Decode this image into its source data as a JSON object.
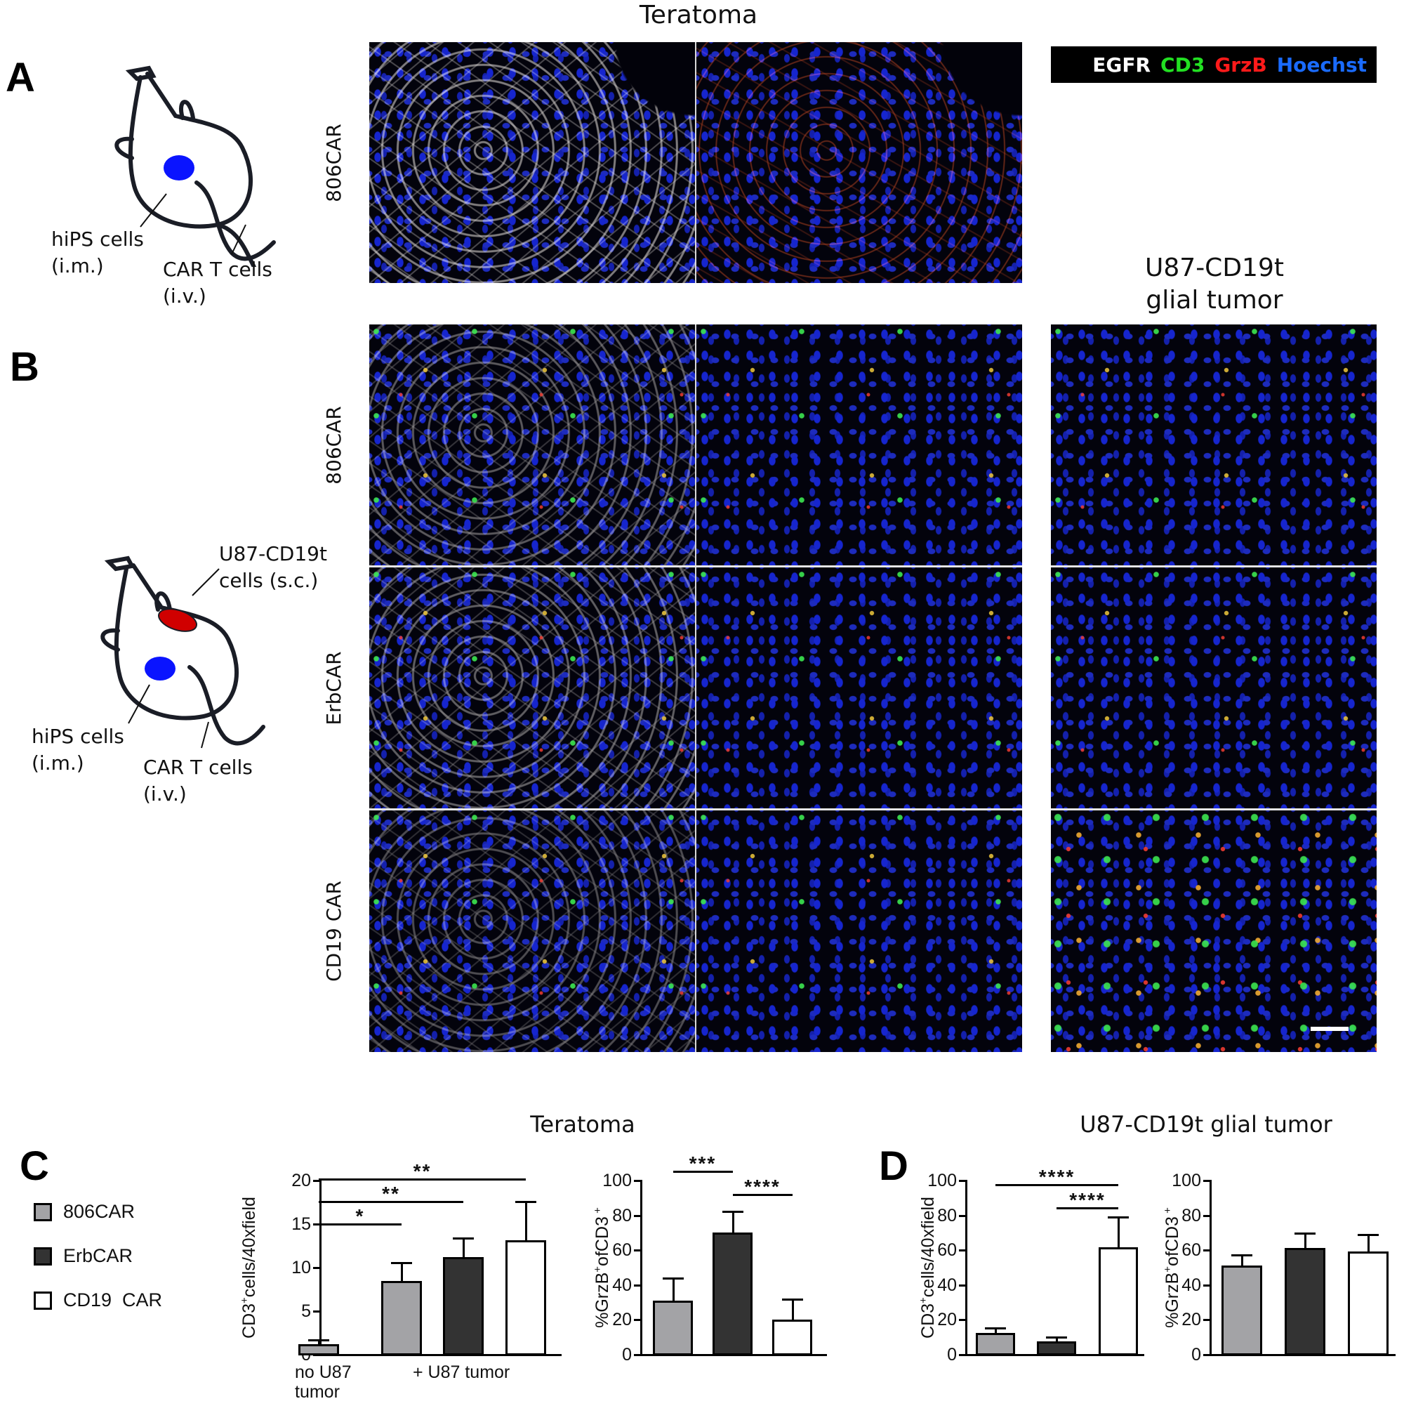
{
  "figure": {
    "panel_letters": [
      "A",
      "B",
      "C",
      "D"
    ],
    "top_title": "Teratoma",
    "right_column_title_line1": "U87-CD19t",
    "right_column_title_line2": "glial tumor",
    "stain_legend": [
      {
        "label": "EGFR",
        "color": "#ffffff"
      },
      {
        "label": "CD3",
        "color": "#22e022"
      },
      {
        "label": "GrzB",
        "color": "#ff1a1a"
      },
      {
        "label": "Hoechst",
        "color": "#1a6bff"
      }
    ],
    "panel_a": {
      "row_label": "806CAR",
      "mouse": {
        "label_hips_line1": "hiPS cells",
        "label_hips_line2": "(i.m.)",
        "label_cart_line1": "CAR T cells",
        "label_cart_line2": "(i.v.)",
        "hips_color": "#0a14ff"
      }
    },
    "panel_b": {
      "row_labels": [
        "806CAR",
        "ErbCAR",
        "CD19 CAR"
      ],
      "mouse": {
        "label_u87_line1": "U87-CD19t",
        "label_u87_line2": "cells (s.c.)",
        "label_hips_line1": "hiPS cells",
        "label_hips_line2": "(i.m.)",
        "label_cart_line1": "CAR T cells",
        "label_cart_line2": "(i.v.)",
        "hips_color": "#0a14ff",
        "u87_color": "#d00000"
      }
    },
    "bottom_titles": {
      "teratoma": "Teratoma",
      "glial": "U87-CD19t glial tumor"
    },
    "bar_legend": [
      {
        "label": "806CAR",
        "color": "#a3a3a6"
      },
      {
        "label": "ErbCAR",
        "color": "#333333"
      },
      {
        "label": "CD19  CAR",
        "color": "#ffffff"
      }
    ]
  },
  "chart_data": [
    {
      "id": "C-left",
      "type": "bar",
      "panel": "C",
      "group_title": "Teratoma",
      "ylabel": "CD3+cells/40xfield",
      "ylabel_main": "CD3",
      "ylabel_sup": "+",
      "ylabel_rest": "cells/40xfield",
      "ylim": [
        0,
        20
      ],
      "yticks": [
        "0",
        "5",
        "10",
        "15",
        "20"
      ],
      "x_group_labels": [
        {
          "line1": "no U87",
          "line2": "tumor"
        },
        {
          "line1": "+ U87 tumor",
          "line2": ""
        }
      ],
      "categories": [
        "806CAR (no U87 tumor)",
        "806CAR (+U87)",
        "ErbCAR (+U87)",
        "CD19 CAR (+U87)"
      ],
      "values": [
        1.1,
        8.4,
        11.1,
        13.1
      ],
      "error_upper": [
        1.7,
        10.6,
        13.4,
        17.6
      ],
      "colors": [
        "#a3a3a6",
        "#a3a3a6",
        "#333333",
        "#ffffff"
      ],
      "significance": [
        {
          "from": 0,
          "to": 3,
          "label": "**"
        },
        {
          "from": 0,
          "to": 2,
          "label": "**"
        },
        {
          "from": 0,
          "to": 1,
          "label": "*"
        }
      ]
    },
    {
      "id": "C-right",
      "type": "bar",
      "panel": "C",
      "group_title": "Teratoma",
      "ylabel": "%GrzB+ofCD3+",
      "ylabel_main": "%GrzB",
      "ylabel_sup": "+",
      "ylabel_rest": "ofCD3",
      "ylabel_sup2": "+",
      "ylim": [
        0,
        100
      ],
      "yticks": [
        "0",
        "20",
        "40",
        "60",
        "80",
        "100"
      ],
      "categories": [
        "806CAR",
        "ErbCAR",
        "CD19 CAR"
      ],
      "values": [
        30.6,
        69.8,
        19.7
      ],
      "error_upper": [
        43.9,
        82.4,
        31.9
      ],
      "colors": [
        "#a3a3a6",
        "#333333",
        "#ffffff"
      ],
      "significance": [
        {
          "from": 0,
          "to": 1,
          "label": "***"
        },
        {
          "from": 1,
          "to": 2,
          "label": "****"
        }
      ]
    },
    {
      "id": "D-left",
      "type": "bar",
      "panel": "D",
      "group_title": "U87-CD19t glial tumor",
      "ylabel": "CD3+cells/40xfield",
      "ylabel_main": "CD3",
      "ylabel_sup": "+",
      "ylabel_rest": "cells/40xfield",
      "ylim": [
        0,
        100
      ],
      "yticks": [
        "0",
        "20",
        "40",
        "60",
        "80",
        "100"
      ],
      "categories": [
        "806CAR",
        "ErbCAR",
        "CD19 CAR"
      ],
      "values": [
        12.2,
        7.1,
        61.3
      ],
      "error_upper": [
        15.3,
        10.1,
        79.0
      ],
      "colors": [
        "#a3a3a6",
        "#333333",
        "#ffffff"
      ],
      "significance": [
        {
          "from": 0,
          "to": 2,
          "label": "****"
        },
        {
          "from": 1,
          "to": 2,
          "label": "****"
        }
      ]
    },
    {
      "id": "D-right",
      "type": "bar",
      "panel": "D",
      "group_title": "U87-CD19t glial tumor",
      "ylabel": "%GrzB+ofCD3+",
      "ylabel_main": "%GrzB",
      "ylabel_sup": "+",
      "ylabel_rest": "ofCD3",
      "ylabel_sup2": "+",
      "ylim": [
        0,
        100
      ],
      "yticks": [
        "0",
        "20",
        "40",
        "60",
        "80",
        "100"
      ],
      "categories": [
        "806CAR",
        "ErbCAR",
        "CD19 CAR"
      ],
      "values": [
        50.8,
        60.8,
        59.0
      ],
      "error_upper": [
        57.4,
        69.9,
        68.8
      ],
      "colors": [
        "#a3a3a6",
        "#333333",
        "#ffffff"
      ],
      "significance": []
    }
  ]
}
